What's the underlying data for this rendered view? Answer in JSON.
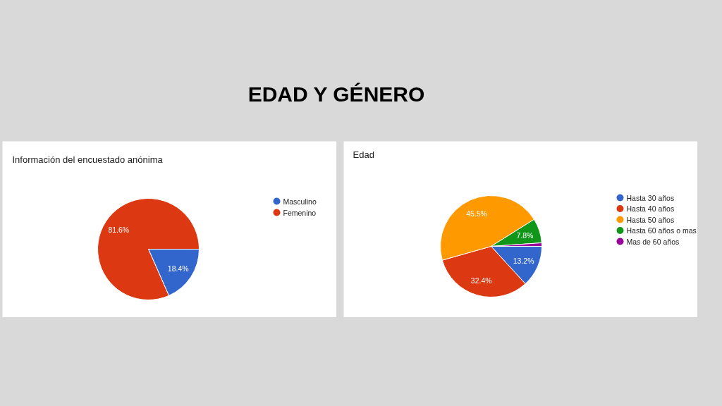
{
  "chart_data": [
    {
      "type": "pie",
      "title": "Información del encuestado anónima",
      "annotations": [
        "EDAD Y GÉNERO"
      ],
      "categories": [
        "Masculino",
        "Femenino"
      ],
      "values": [
        18.4,
        81.6
      ],
      "colors": [
        "#3366cc",
        "#dc3912"
      ],
      "value_labels": [
        "18.4%",
        "81.6%"
      ],
      "legend": "right"
    },
    {
      "type": "pie",
      "title": "Edad",
      "categories": [
        "Hasta 30 años",
        "Hasta 40 años",
        "Hasta 50 años",
        "Hasta 60 años o mas",
        "Mas de 60 años"
      ],
      "values": [
        13.2,
        32.4,
        45.5,
        7.8,
        1.1
      ],
      "colors": [
        "#3366cc",
        "#dc3912",
        "#ff9900",
        "#109618",
        "#990099"
      ],
      "value_labels": [
        "13.2%",
        "32.4%",
        "45.5%",
        "7.8%",
        null
      ],
      "legend": "right"
    }
  ]
}
